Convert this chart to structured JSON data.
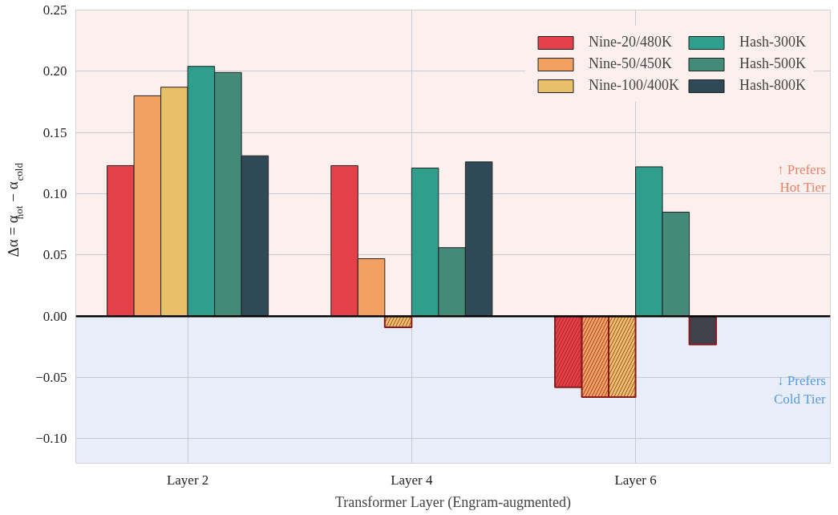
{
  "chart_data": {
    "type": "bar",
    "xlabel": "Transformer Layer (Engram-augmented)",
    "ylabel": "Δα = α$_{hot}$ − α$_{cold}$",
    "categories": [
      "Layer 2",
      "Layer 4",
      "Layer 6"
    ],
    "series": [
      {
        "name": "Nine-20/480K",
        "color": "#e5404a",
        "values": [
          0.123,
          0.123,
          -0.058
        ]
      },
      {
        "name": "Nine-50/450K",
        "color": "#f2a060",
        "values": [
          0.18,
          0.047,
          -0.066
        ]
      },
      {
        "name": "Nine-100/400K",
        "color": "#e8c06a",
        "values": [
          0.187,
          -0.009,
          -0.066
        ]
      },
      {
        "name": "Hash-300K",
        "color": "#2f9e8c",
        "values": [
          0.204,
          0.121,
          0.122
        ]
      },
      {
        "name": "Hash-500K",
        "color": "#438a78",
        "values": [
          0.199,
          0.056,
          0.085
        ]
      },
      {
        "name": "Hash-800K",
        "color": "#2f4a56",
        "values": [
          0.131,
          0.126,
          -0.023
        ]
      }
    ],
    "ylim": [
      -0.12,
      0.25
    ],
    "yticks": [
      {
        "value": -0.1,
        "label": "−0.10"
      },
      {
        "value": -0.05,
        "label": "−0.05"
      },
      {
        "value": 0,
        "label": "0.00"
      },
      {
        "value": 0.05,
        "label": "0.05"
      },
      {
        "value": 0.1,
        "label": "0.10"
      },
      {
        "value": 0.15,
        "label": "0.15"
      },
      {
        "value": 0.2,
        "label": "0.20"
      },
      {
        "value": 0.25,
        "label": "0.25"
      }
    ],
    "ref_lines": [
      {
        "axis": "y",
        "value": 0,
        "color": "#000000"
      }
    ],
    "bands": [
      {
        "axis": "y",
        "from": 0,
        "to": 0.25,
        "label": "↑ Prefers\nHot Tier",
        "color": "#fbf0ee"
      },
      {
        "axis": "y",
        "from": -0.12,
        "to": 0,
        "label": "↓ Prefers\nCold Tier",
        "color": "#e8eef8"
      }
    ],
    "grid": true,
    "legend": "top right"
  }
}
